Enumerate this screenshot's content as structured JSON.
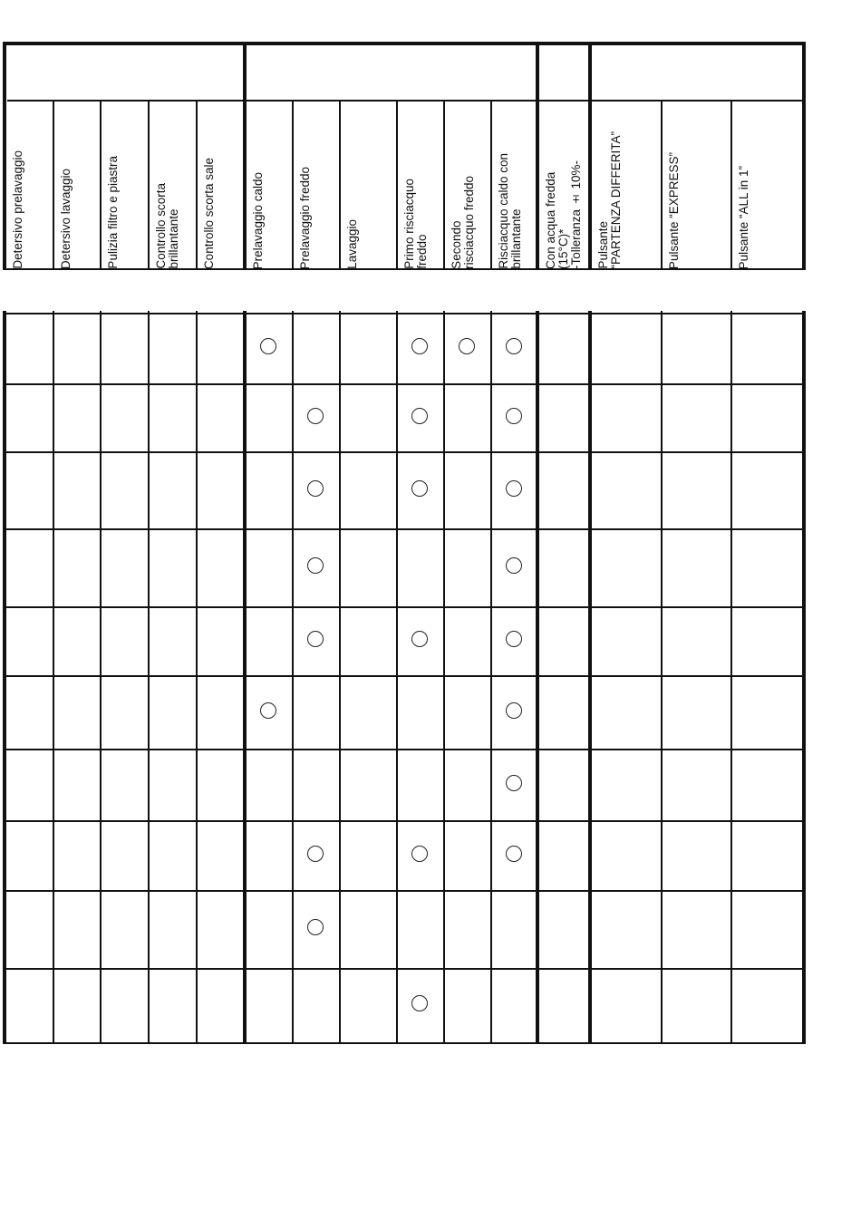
{
  "header": {
    "columns": [
      "Detersivo prelavaggio",
      "Detersivo lavaggio",
      "Pulizia filtro e piastra",
      "Controllo scorta\nbrillantante",
      "Controllo scorta sale",
      "Prelavaggio caldo",
      "Prelavaggio freddo",
      "Lavaggio",
      "Primo risciacquo\nfreddo",
      "Secondo\nrisciacquo freddo",
      "Risciacquo caldo con\nbrillantante",
      "Con acqua fredda\n(15°C)*\n-Tolleranza ± 10%-",
      "Pulsante\n“PARTENZA DIFFERITA”",
      "Pulsante “EXPRESS”",
      "Pulsante “ALL in 1”"
    ]
  },
  "marks": [
    [
      5,
      8,
      9,
      10
    ],
    [
      6,
      8,
      10
    ],
    [
      6,
      8,
      10
    ],
    [
      6,
      10
    ],
    [
      6,
      8,
      10
    ],
    [
      5,
      10
    ],
    [
      10
    ],
    [
      6,
      8,
      10
    ],
    [
      6
    ],
    [
      8
    ]
  ]
}
